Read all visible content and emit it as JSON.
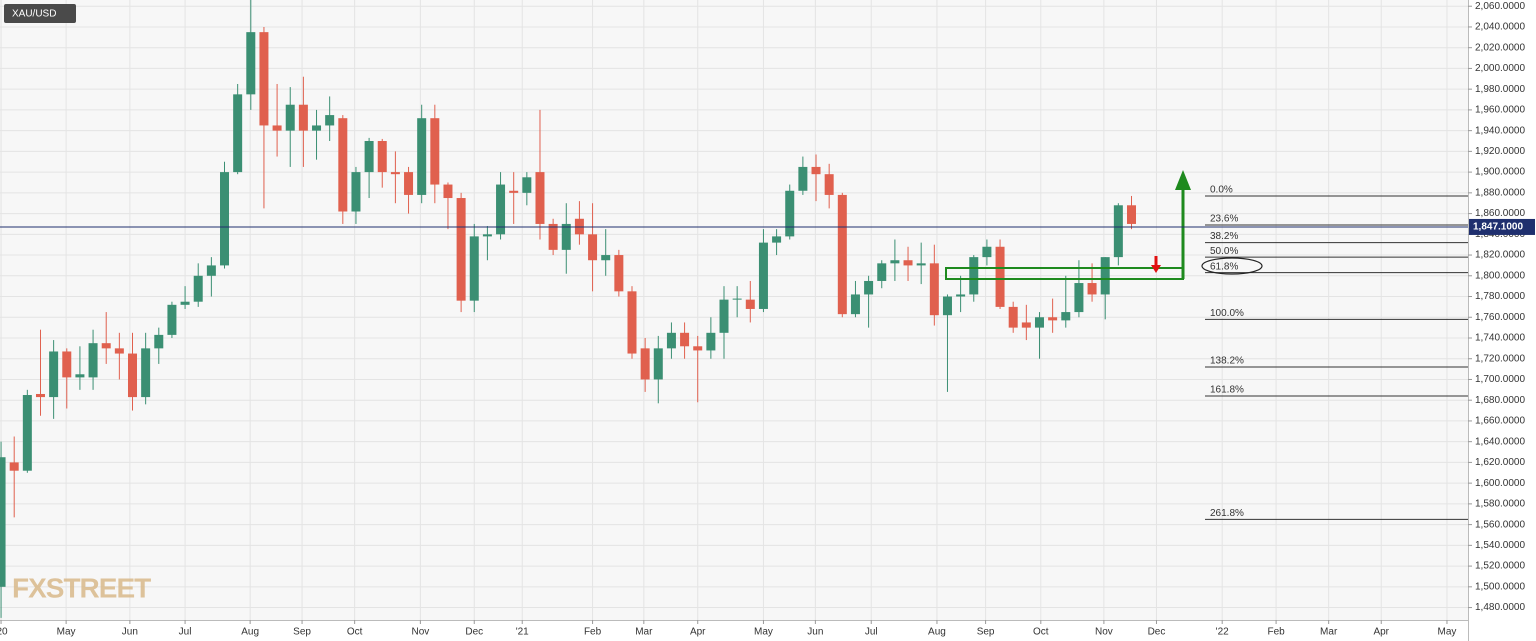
{
  "chart_data": {
    "type": "candlestick",
    "title": "XAU/USD",
    "watermark": "FXSTREET",
    "series": [
      {
        "name": "XAU/USD",
        "up_color": "#3b8f73",
        "down_color": "#e0604e",
        "open": [
          1500,
          1620,
          1612,
          1686,
          1683,
          1727,
          1702,
          1702,
          1735,
          1730,
          1725,
          1683,
          1730,
          1743,
          1772,
          1775,
          1800,
          1810,
          1900,
          1975,
          2035,
          1945,
          1940,
          1965,
          1940,
          1945,
          1952,
          1862,
          1900,
          1930,
          1900,
          1900,
          1878,
          1952,
          1888,
          1875,
          1776,
          1838,
          1840,
          1882,
          1880,
          1900,
          1850,
          1825,
          1855,
          1840,
          1815,
          1820,
          1785,
          1730,
          1700,
          1730,
          1745,
          1732,
          1728,
          1745,
          1777,
          1777,
          1768,
          1832,
          1838,
          1882,
          1905,
          1898,
          1878,
          1763,
          1782,
          1795,
          1812,
          1815,
          1810,
          1812,
          1762,
          1780,
          1782,
          1818,
          1828,
          1770,
          1755,
          1750,
          1760,
          1757,
          1765,
          1793,
          1782,
          1818,
          1868
        ],
        "high": [
          1640,
          1645,
          1690,
          1748,
          1738,
          1730,
          1732,
          1748,
          1765,
          1745,
          1745,
          1745,
          1750,
          1775,
          1790,
          1812,
          1818,
          1910,
          1985,
          2072,
          2040,
          1985,
          1982,
          1992,
          1960,
          1973,
          1955,
          1905,
          1933,
          1932,
          1920,
          1905,
          1965,
          1965,
          1890,
          1880,
          1850,
          1848,
          1900,
          1900,
          1900,
          1960,
          1855,
          1870,
          1872,
          1870,
          1845,
          1825,
          1790,
          1740,
          1742,
          1755,
          1755,
          1742,
          1760,
          1790,
          1790,
          1795,
          1845,
          1845,
          1888,
          1915,
          1917,
          1908,
          1880,
          1795,
          1800,
          1815,
          1835,
          1828,
          1832,
          1830,
          1782,
          1800,
          1820,
          1835,
          1835,
          1775,
          1772,
          1765,
          1778,
          1800,
          1815,
          1812,
          1818,
          1870,
          1877
        ],
        "low": [
          1470,
          1567,
          1610,
          1665,
          1662,
          1672,
          1690,
          1690,
          1715,
          1700,
          1670,
          1676,
          1715,
          1740,
          1768,
          1770,
          1780,
          1807,
          1898,
          1960,
          1865,
          1915,
          1905,
          1905,
          1912,
          1930,
          1850,
          1850,
          1875,
          1885,
          1870,
          1860,
          1870,
          1870,
          1845,
          1765,
          1765,
          1815,
          1835,
          1850,
          1868,
          1835,
          1820,
          1802,
          1830,
          1785,
          1800,
          1780,
          1720,
          1688,
          1677,
          1720,
          1720,
          1678,
          1720,
          1720,
          1760,
          1755,
          1765,
          1820,
          1835,
          1878,
          1872,
          1865,
          1760,
          1760,
          1750,
          1788,
          1795,
          1795,
          1792,
          1752,
          1688,
          1765,
          1775,
          1810,
          1768,
          1745,
          1738,
          1720,
          1745,
          1750,
          1760,
          1775,
          1758,
          1810,
          1845
        ],
        "close": [
          1625,
          1612,
          1685,
          1683,
          1727,
          1702,
          1705,
          1735,
          1730,
          1725,
          1683,
          1730,
          1743,
          1772,
          1775,
          1800,
          1810,
          1900,
          1975,
          2035,
          1945,
          1940,
          1965,
          1940,
          1945,
          1955,
          1862,
          1900,
          1930,
          1900,
          1898,
          1878,
          1952,
          1888,
          1875,
          1776,
          1838,
          1840,
          1888,
          1880,
          1895,
          1850,
          1825,
          1850,
          1840,
          1815,
          1820,
          1785,
          1725,
          1700,
          1730,
          1745,
          1732,
          1728,
          1745,
          1777,
          1778,
          1768,
          1832,
          1838,
          1882,
          1905,
          1898,
          1878,
          1763,
          1782,
          1795,
          1812,
          1815,
          1810,
          1812,
          1762,
          1780,
          1782,
          1818,
          1828,
          1770,
          1750,
          1750,
          1760,
          1757,
          1765,
          1793,
          1782,
          1818,
          1868,
          1850
        ]
      }
    ],
    "last_price": {
      "value": 1847.1,
      "label": "1,847.1000"
    },
    "fib_levels": [
      {
        "value": 1877,
        "label": "0.0%"
      },
      {
        "value": 1849,
        "label": "23.6%"
      },
      {
        "value": 1832,
        "label": "38.2%"
      },
      {
        "value": 1818,
        "label": "50.0%"
      },
      {
        "value": 1803,
        "label": "61.8%"
      },
      {
        "value": 1758,
        "label": "100.0%"
      },
      {
        "value": 1712,
        "label": "138.2%"
      },
      {
        "value": 1684,
        "label": "161.8%"
      },
      {
        "value": 1565,
        "label": "261.8%"
      }
    ],
    "xlim": [
      -0.08,
      111.6
    ],
    "ylim": [
      1468,
      2066
    ],
    "xticks": [
      {
        "value": 0,
        "label": "'20"
      },
      {
        "value": 4.95,
        "label": "May"
      },
      {
        "value": 9.8,
        "label": "Jun"
      },
      {
        "value": 14,
        "label": "Jul"
      },
      {
        "value": 18.95,
        "label": "Aug"
      },
      {
        "value": 22.9,
        "label": "Sep"
      },
      {
        "value": 26.9,
        "label": "Oct"
      },
      {
        "value": 31.9,
        "label": "Nov"
      },
      {
        "value": 36,
        "label": "Dec"
      },
      {
        "value": 39.65,
        "label": "'21"
      },
      {
        "value": 45,
        "label": "Feb"
      },
      {
        "value": 48.9,
        "label": "Mar"
      },
      {
        "value": 53,
        "label": "Apr"
      },
      {
        "value": 58,
        "label": "May"
      },
      {
        "value": 61.95,
        "label": "Jun"
      },
      {
        "value": 66.2,
        "label": "Jul"
      },
      {
        "value": 71.2,
        "label": "Aug"
      },
      {
        "value": 74.9,
        "label": "Sep"
      },
      {
        "value": 79.1,
        "label": "Oct"
      },
      {
        "value": 83.9,
        "label": "Nov"
      },
      {
        "value": 87.9,
        "label": "Dec"
      },
      {
        "value": 92.9,
        "label": "'22"
      },
      {
        "value": 97,
        "label": "Feb"
      },
      {
        "value": 101,
        "label": "Mar"
      },
      {
        "value": 105,
        "label": "Apr"
      },
      {
        "value": 110,
        "label": "May"
      }
    ],
    "yticks": [
      {
        "value": 1480,
        "label": "1,480.0000"
      },
      {
        "value": 1500,
        "label": "1,500.0000"
      },
      {
        "value": 1520,
        "label": "1,520.0000"
      },
      {
        "value": 1540,
        "label": "1,540.0000"
      },
      {
        "value": 1560,
        "label": "1,560.0000"
      },
      {
        "value": 1580,
        "label": "1,580.0000"
      },
      {
        "value": 1600,
        "label": "1,600.0000"
      },
      {
        "value": 1620,
        "label": "1,620.0000"
      },
      {
        "value": 1640,
        "label": "1,640.0000"
      },
      {
        "value": 1660,
        "label": "1,660.0000"
      },
      {
        "value": 1680,
        "label": "1,680.0000"
      },
      {
        "value": 1700,
        "label": "1,700.0000"
      },
      {
        "value": 1720,
        "label": "1,720.0000"
      },
      {
        "value": 1740,
        "label": "1,740.0000"
      },
      {
        "value": 1760,
        "label": "1,760.0000"
      },
      {
        "value": 1780,
        "label": "1,780.0000"
      },
      {
        "value": 1800,
        "label": "1,800.0000"
      },
      {
        "value": 1820,
        "label": "1,820.0000"
      },
      {
        "value": 1840,
        "label": "1,840.0000"
      },
      {
        "value": 1860,
        "label": "1,860.0000"
      },
      {
        "value": 1880,
        "label": "1,880.0000"
      },
      {
        "value": 1900,
        "label": "1,900.0000"
      },
      {
        "value": 1920,
        "label": "1,920.0000"
      },
      {
        "value": 1940,
        "label": "1,940.0000"
      },
      {
        "value": 1960,
        "label": "1,960.0000"
      },
      {
        "value": 1980,
        "label": "1,980.0000"
      },
      {
        "value": 2000,
        "label": "2,000.0000"
      },
      {
        "value": 2020,
        "label": "2,020.0000"
      },
      {
        "value": 2040,
        "label": "2,040.0000"
      },
      {
        "value": 2060,
        "label": "2,060.0000"
      }
    ],
    "grid": true
  }
}
